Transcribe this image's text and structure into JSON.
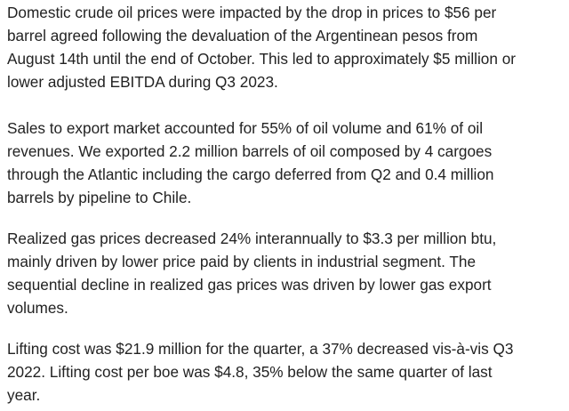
{
  "paragraphs": [
    {
      "lines": [
        "Domestic crude oil prices were impacted by the drop in prices to $56 per",
        "barrel agreed following the devaluation of the Argentinean pesos from",
        "August 14th until the end of October. This led to approximately $5 million or",
        "lower adjusted EBITDA during Q3 2023."
      ]
    },
    {
      "lines": [
        "Sales to export market accounted for 55% of oil volume and 61% of oil",
        "revenues. We exported 2.2 million barrels of oil composed by 4 cargoes",
        "through the Atlantic including the cargo deferred from Q2 and 0.4 million",
        "barrels by pipeline to Chile."
      ]
    },
    {
      "lines": [
        "Realized gas prices decreased 24% interannually to $3.3 per million btu,",
        "mainly driven by lower price paid by clients in industrial segment. The",
        "sequential decline in realized gas prices was driven by lower gas export",
        "volumes."
      ]
    },
    {
      "lines": [
        "Lifting cost was $21.9 million for the quarter, a 37% decreased vis-à-vis Q3",
        "2022. Lifting cost per boe was $4.8, 35% below the same quarter of last",
        "year."
      ]
    }
  ],
  "colors": {
    "text": "#222222",
    "background": "#ffffff"
  }
}
